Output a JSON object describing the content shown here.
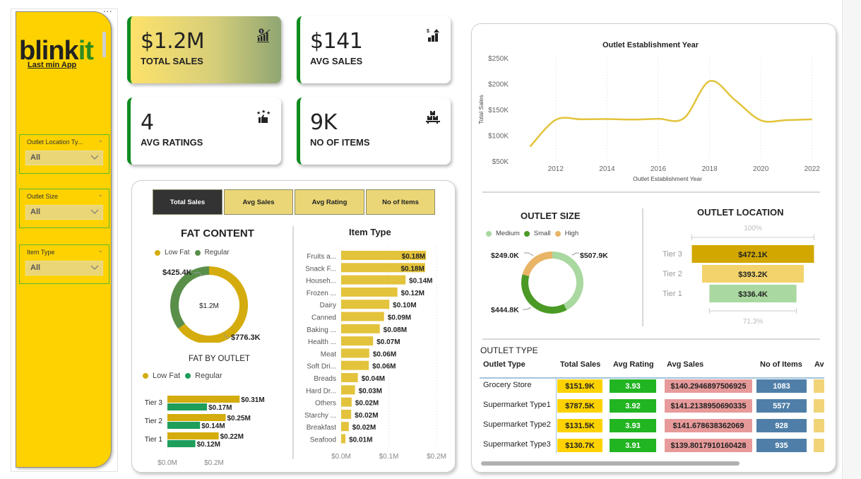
{
  "sidebar": {
    "more_label": "···",
    "logo_main": "blink",
    "logo_accent": "it",
    "tagline": "Last min App",
    "slicers": [
      {
        "title": "Outlet Location Ty...",
        "value": "All"
      },
      {
        "title": "Outlet Size",
        "value": "All"
      },
      {
        "title": "Item Type",
        "value": "All"
      }
    ]
  },
  "kpis": [
    {
      "value": "$1.2M",
      "label": "TOTAL SALES",
      "icon": "sales-growth-icon"
    },
    {
      "value": "$141",
      "label": "AVG SALES",
      "icon": "dollar-bar-chart-icon"
    },
    {
      "value": "4",
      "label": "AVG RATINGS",
      "icon": "thumbs-up-stars-icon"
    },
    {
      "value": "9K",
      "label": "NO OF ITEMS",
      "icon": "stacked-boxes-icon"
    }
  ],
  "metric_tabs": [
    {
      "label": "Total Sales",
      "active": true
    },
    {
      "label": "Avg Sales",
      "active": false
    },
    {
      "label": "Avg Rating",
      "active": false
    },
    {
      "label": "No of Items",
      "active": false
    }
  ],
  "colors": {
    "brand_yellow": "#fdd200",
    "accent_green": "#0e8c1e",
    "low_fat": "#d4ac0d",
    "regular_donut": "#5a8f4a",
    "regular_bar": "#1e9e5a",
    "item_bar": "#e3c33b",
    "line": "#e3c33b",
    "medium": "#a9d8a0",
    "small": "#4a9a25",
    "high": "#e8b466",
    "tier3": "#d1a700",
    "tier2": "#f3d36b",
    "tier1": "#a9d8a0",
    "cell_sales": "#fdd200",
    "cell_rating": "#22b522",
    "cell_avg": "#e79a9a",
    "cell_items": "#4f7fa8",
    "cell_extra": "#f0d477"
  },
  "chart_data": [
    {
      "id": "fat_content",
      "type": "pie",
      "title": "FAT CONTENT",
      "center_label": "$1.2M",
      "legend": [
        "Low Fat",
        "Regular"
      ],
      "slices": [
        {
          "name": "Low Fat",
          "value": 776.3,
          "label": "$776.3K"
        },
        {
          "name": "Regular",
          "value": 425.4,
          "label": "$425.4K"
        }
      ]
    },
    {
      "id": "fat_by_outlet",
      "type": "bar",
      "title": "FAT BY OUTLET",
      "legend": [
        "Low Fat",
        "Regular"
      ],
      "categories": [
        "Tier 3",
        "Tier 2",
        "Tier 1"
      ],
      "series": [
        {
          "name": "Low Fat",
          "values": [
            0.31,
            0.25,
            0.22
          ],
          "labels": [
            "$0.31M",
            "$0.25M",
            "$0.22M"
          ]
        },
        {
          "name": "Regular",
          "values": [
            0.17,
            0.14,
            0.12
          ],
          "labels": [
            "$0.17M",
            "$0.14M",
            "$0.12M"
          ]
        }
      ],
      "x_ticks": [
        "$0.0M",
        "$0.2M"
      ],
      "xlim": [
        0,
        0.4
      ]
    },
    {
      "id": "item_type",
      "type": "bar",
      "title": "Item Type",
      "categories": [
        "Fruits a...",
        "Snack F...",
        "Househ...",
        "Frozen ...",
        "Dairy",
        "Canned",
        "Baking ...",
        "Health ...",
        "Meat",
        "Soft Dri...",
        "Breads",
        "Hard Dr...",
        "Others",
        "Starchy ...",
        "Breakfast",
        "Seafood"
      ],
      "values": [
        0.178,
        0.176,
        0.135,
        0.118,
        0.101,
        0.09,
        0.081,
        0.067,
        0.059,
        0.058,
        0.035,
        0.029,
        0.022,
        0.021,
        0.016,
        0.009
      ],
      "labels": [
        "$0.18M",
        "$0.18M",
        "$0.14M",
        "$0.12M",
        "$0.10M",
        "$0.09M",
        "$0.08M",
        "$0.07M",
        "$0.06M",
        "$0.06M",
        "$0.04M",
        "$0.03M",
        "$0.02M",
        "$0.02M",
        "$0.02M",
        "$0.01M"
      ],
      "x_ticks": [
        "$0.0M",
        "$0.1M",
        "$0.2M"
      ],
      "xlim": [
        0,
        0.2
      ]
    },
    {
      "id": "establishment_year",
      "type": "line",
      "title": "Outlet Establishment Year",
      "xlabel": "Outlet Establishment Year",
      "ylabel": "Total Sales",
      "x": [
        2011,
        2012,
        2013,
        2014,
        2015,
        2016,
        2017,
        2018,
        2019,
        2020,
        2021,
        2022
      ],
      "values": [
        78,
        130,
        131,
        131.5,
        130.5,
        132,
        133,
        205,
        168,
        129,
        129.5,
        131
      ],
      "x_ticks": [
        "2012",
        "2014",
        "2016",
        "2018",
        "2020",
        "2022"
      ],
      "y_ticks": [
        "$50K",
        "$100K",
        "$150K",
        "$200K",
        "$250K"
      ],
      "xlim": [
        2010.6,
        2022.2
      ],
      "ylim": [
        50,
        250
      ],
      "grid": "vertical-dotted"
    },
    {
      "id": "outlet_size",
      "type": "pie",
      "title": "OUTLET SIZE",
      "legend": [
        "Medium",
        "Small",
        "High"
      ],
      "slices": [
        {
          "name": "Medium",
          "value": 507.9,
          "label": "$507.9K"
        },
        {
          "name": "Small",
          "value": 444.8,
          "label": "$444.8K"
        },
        {
          "name": "High",
          "value": 249.0,
          "label": "$249.0K"
        }
      ]
    },
    {
      "id": "outlet_location",
      "type": "bar",
      "title": "OUTLET LOCATION",
      "categories": [
        "Tier 3",
        "Tier 2",
        "Tier 1"
      ],
      "values": [
        472.1,
        393.2,
        336.4
      ],
      "labels": [
        "$472.1K",
        "$393.2K",
        "$336.4K"
      ],
      "top_percent": "100%",
      "bottom_percent": "71.3%"
    }
  ],
  "outlet_type_table": {
    "title": "OUTLET TYPE",
    "columns": [
      "Outlet Type",
      "Total Sales",
      "Avg Rating",
      "Avg Sales",
      "No of Items",
      "Av"
    ],
    "rows": [
      {
        "type": "Grocery Store",
        "total_sales": "$151.9K",
        "avg_rating": "3.93",
        "avg_sales": "$140.2946897506925",
        "items": "1083"
      },
      {
        "type": "Supermarket Type1",
        "total_sales": "$787.5K",
        "avg_rating": "3.92",
        "avg_sales": "$141.2138950690335",
        "items": "5577"
      },
      {
        "type": "Supermarket Type2",
        "total_sales": "$131.5K",
        "avg_rating": "3.93",
        "avg_sales": "$141.678638362069",
        "items": "928"
      },
      {
        "type": "Supermarket Type3",
        "total_sales": "$130.7K",
        "avg_rating": "3.91",
        "avg_sales": "$139.8017910160428",
        "items": "935"
      }
    ]
  }
}
